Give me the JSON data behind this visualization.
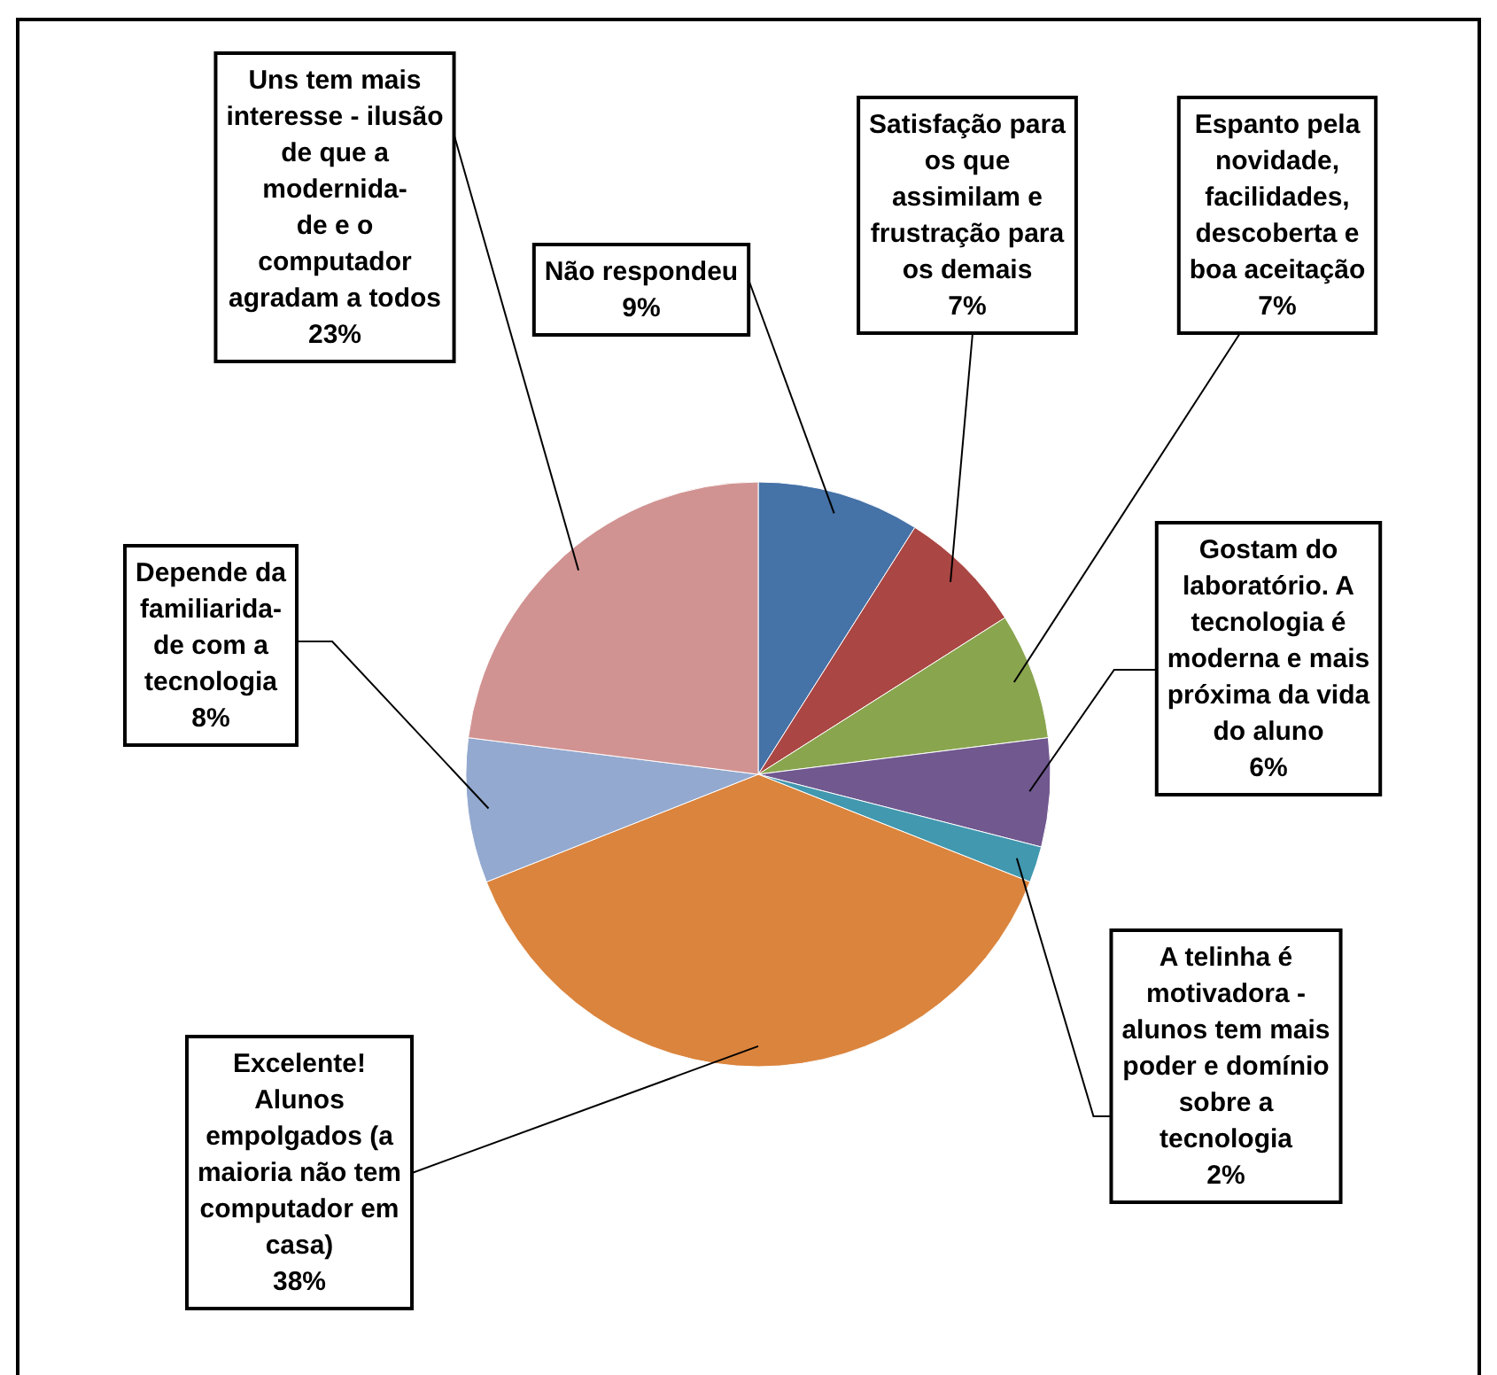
{
  "chart_data": {
    "type": "pie",
    "categories": [
      "Não respondeu",
      "Satisfação para\nos que\nassimilam e\nfrustração para\nos demais",
      "Espanto pela\nnovidade,\nfacilidades,\ndescoberta e\nboa aceitação",
      "Gostam do\nlaboratório. A\ntecnologia é\nmoderna e mais\npróxima da vida\ndo aluno",
      "A telinha é\nmotivadora -\nalunos tem mais\npoder e domínio\nsobre a\ntecnologia",
      "Excelente!\nAlunos\nempolgados (a\nmaioria não tem\ncomputador em\ncasa)",
      "Depende da\nfamiliarida-\nde com a\ntecnologia",
      "Uns tem mais\ninteresse - ilusão\nde que a\nmodernida-\nde e o\ncomputador\nagradam a todos"
    ],
    "values": [
      9,
      7,
      7,
      6,
      2,
      38,
      8,
      23
    ],
    "value_labels": [
      "9%",
      "7%",
      "7%",
      "6%",
      "2%",
      "38%",
      "8%",
      "23%"
    ],
    "colors": [
      "#4572a7",
      "#aa4643",
      "#89a54e",
      "#71588f",
      "#4198af",
      "#db843d",
      "#93a9cf",
      "#d19392"
    ]
  }
}
